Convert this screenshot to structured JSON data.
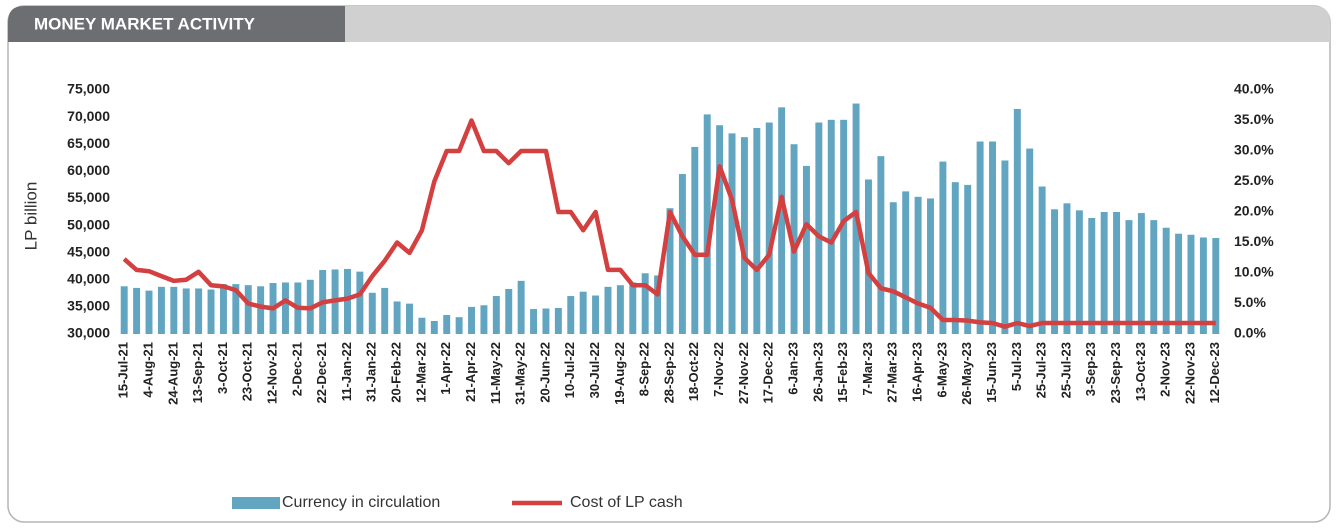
{
  "chart_data": {
    "type": "bar-line",
    "title": "MONEY MARKET ACTIVITY",
    "ylabel": "LP billion",
    "categories": [
      "15-Jul-21",
      null,
      "4-Aug-21",
      null,
      "24-Aug-21",
      null,
      "13-Sep-21",
      null,
      "3-Oct-21",
      null,
      "23-Oct-21",
      null,
      "12-Nov-21",
      null,
      "2-Dec-21",
      null,
      "22-Dec-21",
      null,
      "11-Jan-22",
      null,
      "31-Jan-22",
      null,
      "20-Feb-22",
      null,
      "12-Mar-22",
      null,
      "1-Apr-22",
      null,
      "21-Apr-22",
      null,
      "11-May-22",
      null,
      "31-May-22",
      null,
      "20-Jun-22",
      null,
      "10-Jul-22",
      null,
      "30-Jul-22",
      null,
      "19-Aug-22",
      null,
      "8-Sep-22",
      null,
      "28-Sep-22",
      null,
      "18-Oct-22",
      null,
      "7-Nov-22",
      null,
      "27-Nov-22",
      null,
      "17-Dec-22",
      null,
      "6-Jan-23",
      null,
      "26-Jan-23",
      null,
      "15-Feb-23",
      null,
      "7-Mar-23",
      null,
      "27-Mar-23",
      null,
      "16-Apr-23",
      null,
      "6-May-23",
      null,
      "26-May-23",
      null,
      "15-Jun-23",
      null,
      "5-Jul-23",
      null,
      "25-Jul-23",
      null,
      "25-Jul-23",
      null,
      "3-Sep-23",
      null,
      "23-Sep-23",
      null,
      "13-Oct-23",
      null,
      "2-Nov-23",
      null,
      "22-Nov-23",
      null,
      "12-Dec-23"
    ],
    "series": [
      {
        "name": "Currency in circulation",
        "color": "#62a5c0",
        "values": [
          38800,
          38500,
          38000,
          38700,
          38700,
          38400,
          38400,
          38200,
          39200,
          39200,
          39000,
          38800,
          39400,
          39500,
          39500,
          40000,
          41800,
          41900,
          42000,
          41500,
          37600,
          38500,
          36000,
          35600,
          33000,
          32400,
          33500,
          33100,
          35000,
          35300,
          37000,
          38300,
          39800,
          34600,
          34700,
          34800,
          37000,
          37800,
          37100,
          38700,
          39000,
          39500,
          41200,
          40800,
          53200,
          59500,
          64500,
          70500,
          68500,
          67000,
          66300,
          68000,
          69000,
          71800,
          65000,
          61000,
          69000,
          69500,
          69500,
          72500,
          58500,
          62800,
          54300,
          56300,
          55300,
          55000,
          61800,
          58000,
          57500,
          65500,
          65500,
          62000,
          71500,
          64200,
          57200,
          53000,
          54100,
          52800,
          51400,
          52500,
          52500,
          51000,
          52300,
          51000,
          49600,
          48500,
          48300,
          47800,
          47700
        ]
      },
      {
        "name": "Cost of LP cash",
        "color": "#d43f3f",
        "axis": "y2",
        "values": [
          12.3,
          10.5,
          10.3,
          9.5,
          8.7,
          8.9,
          10.2,
          8.0,
          7.8,
          7.2,
          5.0,
          4.5,
          4.2,
          5.5,
          4.3,
          4.2,
          5.2,
          5.5,
          5.8,
          6.5,
          9.5,
          12,
          15,
          13.3,
          17,
          25,
          30,
          30,
          35,
          30,
          30,
          28,
          30,
          30,
          30,
          20,
          20,
          17,
          20,
          10.5,
          10.5,
          8,
          8,
          6.5,
          20,
          16,
          13,
          13,
          27.5,
          22,
          12.5,
          10.5,
          13,
          22.5,
          13.5,
          18,
          16,
          15,
          18.5,
          20,
          10,
          7.5,
          7,
          6,
          5,
          4.3,
          2.3,
          2.3,
          2.2,
          1.9,
          1.8,
          1.2,
          1.8,
          1.3,
          1.8,
          1.8,
          1.8,
          1.8,
          1.8,
          1.8,
          1.8,
          1.8,
          1.8,
          1.8,
          1.8,
          1.8,
          1.8,
          1.8,
          1.8
        ]
      }
    ],
    "ylim": [
      30000,
      75000
    ],
    "yticks": [
      {
        "value": 30000,
        "label": "30,000"
      },
      {
        "value": 35000,
        "label": "35,000"
      },
      {
        "value": 40000,
        "label": "40,000"
      },
      {
        "value": 45000,
        "label": "45,000"
      },
      {
        "value": 50000,
        "label": "50,000"
      },
      {
        "value": 55000,
        "label": "55,000"
      },
      {
        "value": 60000,
        "label": "60,000"
      },
      {
        "value": 65000,
        "label": "65,000"
      },
      {
        "value": 70000,
        "label": "70,000"
      },
      {
        "value": 75000,
        "label": "75,000"
      }
    ],
    "y2lim": [
      0,
      40
    ],
    "y2ticks": [
      {
        "value": 0,
        "label": "0.0%"
      },
      {
        "value": 5,
        "label": "5.0%"
      },
      {
        "value": 10,
        "label": "10.0%"
      },
      {
        "value": 15,
        "label": "15.0%"
      },
      {
        "value": 20,
        "label": "20.0%"
      },
      {
        "value": 25,
        "label": "25.0%"
      },
      {
        "value": 30,
        "label": "30.0%"
      },
      {
        "value": 35,
        "label": "35.0%"
      },
      {
        "value": 40,
        "label": "40.0%"
      }
    ],
    "legend": "bottom"
  }
}
